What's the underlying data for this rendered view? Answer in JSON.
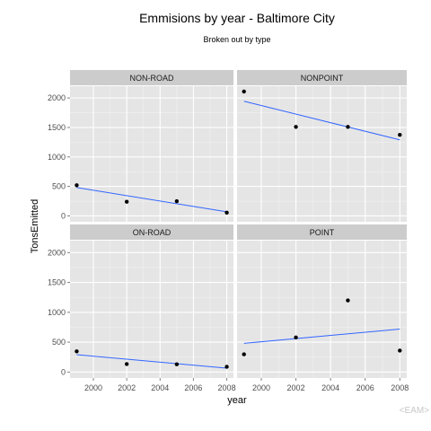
{
  "chart_data": {
    "type": "scatter",
    "title": "Emmisions by year - Baltimore City",
    "subtitle": "Broken out by type",
    "xlabel": "year",
    "ylabel": "TonsEmitted",
    "xlim": [
      1998.6,
      2008.4
    ],
    "ylim": [
      -100,
      2200
    ],
    "x_ticks": [
      2000,
      2002,
      2004,
      2006,
      2008
    ],
    "y_ticks": [
      0,
      500,
      1000,
      1500,
      2000
    ],
    "grid": true,
    "trend_line_color": "#3366ff",
    "panels": [
      {
        "name": "NON-ROAD",
        "points": [
          [
            1999,
            520
          ],
          [
            2002,
            240
          ],
          [
            2005,
            250
          ],
          [
            2008,
            55
          ]
        ],
        "trend": [
          [
            1999,
            480
          ],
          [
            2008,
            70
          ]
        ]
      },
      {
        "name": "NONPOINT",
        "points": [
          [
            1999,
            2110
          ],
          [
            2002,
            1510
          ],
          [
            2005,
            1510
          ],
          [
            2008,
            1375
          ]
        ],
        "trend": [
          [
            1999,
            1945
          ],
          [
            2008,
            1290
          ]
        ]
      },
      {
        "name": "ON-ROAD",
        "points": [
          [
            1999,
            347
          ],
          [
            2002,
            134
          ],
          [
            2005,
            130
          ],
          [
            2008,
            88
          ]
        ],
        "trend": [
          [
            1999,
            290
          ],
          [
            2008,
            65
          ]
        ]
      },
      {
        "name": "POINT",
        "points": [
          [
            1999,
            297
          ],
          [
            2002,
            580
          ],
          [
            2005,
            1200
          ],
          [
            2008,
            360
          ]
        ],
        "trend": [
          [
            1999,
            480
          ],
          [
            2008,
            720
          ]
        ]
      }
    ]
  },
  "watermark": "<EAM>"
}
